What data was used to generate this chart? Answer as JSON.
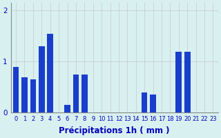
{
  "hours": [
    0,
    1,
    2,
    3,
    4,
    5,
    6,
    7,
    8,
    9,
    10,
    11,
    12,
    13,
    14,
    15,
    16,
    17,
    18,
    19,
    20,
    21,
    22,
    23
  ],
  "values": [
    0.9,
    0.7,
    0.65,
    1.3,
    1.55,
    0.0,
    0.15,
    0.75,
    0.75,
    0.0,
    0.0,
    0.0,
    0.0,
    0.0,
    0.0,
    0.4,
    0.35,
    0.0,
    0.0,
    1.2,
    1.2,
    0.0,
    0.0,
    0.0
  ],
  "bar_color": "#1a3ecc",
  "background_color": "#d8f0f0",
  "grid_color": "#c8c8c8",
  "axis_color": "#0000bb",
  "xlabel": "Précipitations 1h ( mm )",
  "ylim": [
    0,
    2.15
  ],
  "yticks": [
    0,
    1,
    2
  ],
  "xlabel_fontsize": 8.5,
  "tick_fontsize": 6,
  "ytick_fontsize": 7.5
}
